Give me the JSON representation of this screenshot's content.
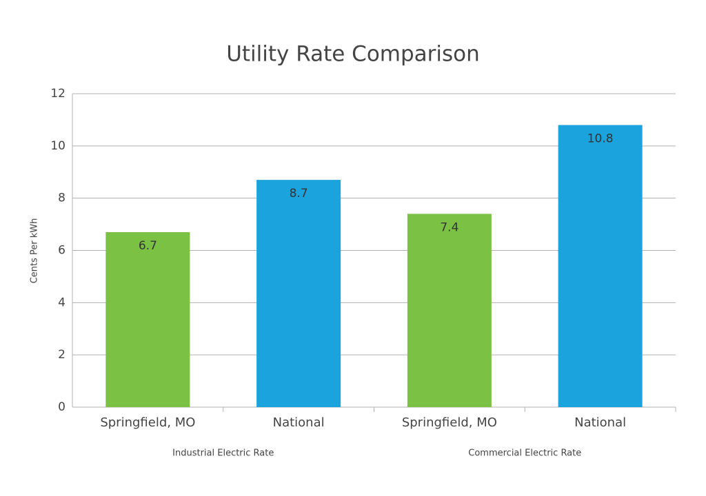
{
  "chart_data": {
    "type": "bar",
    "title": "Utility Rate Comparison",
    "y_label": "Cents Per kWh",
    "categories": [
      "Springfield, MO",
      "National",
      "Springfield, MO",
      "National"
    ],
    "groups": [
      "Industrial Electric Rate",
      "Commercial Electric Rate"
    ],
    "values": [
      6.7,
      8.7,
      7.4,
      10.8
    ],
    "colors": [
      "#7bc143",
      "#1aa3dd",
      "#7bc143",
      "#1aa3dd"
    ],
    "ylim": [
      0,
      12
    ],
    "yticks": [
      0,
      2,
      4,
      6,
      8,
      10,
      12
    ],
    "grid": true
  }
}
